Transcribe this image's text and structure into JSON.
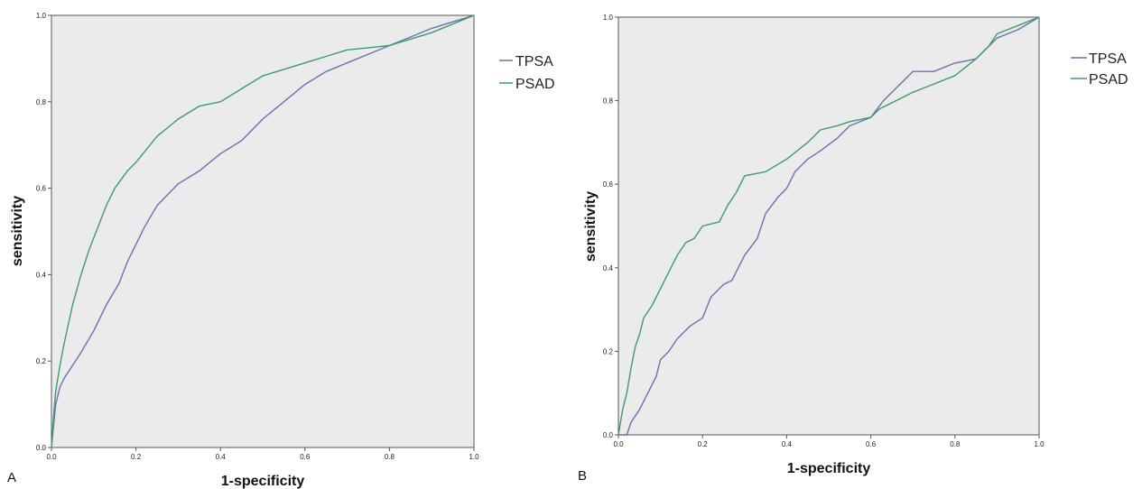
{
  "chart_data": [
    {
      "type": "line",
      "panel_label": "A",
      "xlabel": "1-specificity",
      "ylabel": "sensitivity",
      "xlim": [
        0,
        1
      ],
      "ylim": [
        0,
        1
      ],
      "x_ticks": [
        "0.0",
        "0.2",
        "0.4",
        "0.6",
        "0.8",
        "1.0"
      ],
      "y_ticks": [
        "0.0",
        "0.2",
        "0.4",
        "0.6",
        "0.8",
        "1.0"
      ],
      "grid": false,
      "legend_position": "right",
      "series": [
        {
          "name": "TPSA",
          "color": "#6b6fb3",
          "points": [
            [
              0,
              0
            ],
            [
              0.005,
              0.05
            ],
            [
              0.01,
              0.1
            ],
            [
              0.02,
              0.14
            ],
            [
              0.03,
              0.16
            ],
            [
              0.05,
              0.19
            ],
            [
              0.07,
              0.22
            ],
            [
              0.1,
              0.27
            ],
            [
              0.13,
              0.33
            ],
            [
              0.16,
              0.38
            ],
            [
              0.18,
              0.43
            ],
            [
              0.2,
              0.47
            ],
            [
              0.22,
              0.51
            ],
            [
              0.25,
              0.56
            ],
            [
              0.3,
              0.61
            ],
            [
              0.35,
              0.64
            ],
            [
              0.4,
              0.68
            ],
            [
              0.45,
              0.71
            ],
            [
              0.5,
              0.76
            ],
            [
              0.55,
              0.8
            ],
            [
              0.6,
              0.84
            ],
            [
              0.65,
              0.87
            ],
            [
              0.7,
              0.89
            ],
            [
              0.75,
              0.91
            ],
            [
              0.8,
              0.93
            ],
            [
              0.85,
              0.95
            ],
            [
              0.9,
              0.97
            ],
            [
              0.95,
              0.985
            ],
            [
              1.0,
              1.0
            ]
          ]
        },
        {
          "name": "PSAD",
          "color": "#3f9a6e",
          "points": [
            [
              0,
              0
            ],
            [
              0.005,
              0.07
            ],
            [
              0.01,
              0.13
            ],
            [
              0.02,
              0.19
            ],
            [
              0.03,
              0.24
            ],
            [
              0.05,
              0.33
            ],
            [
              0.07,
              0.4
            ],
            [
              0.09,
              0.46
            ],
            [
              0.11,
              0.51
            ],
            [
              0.13,
              0.56
            ],
            [
              0.15,
              0.6
            ],
            [
              0.18,
              0.64
            ],
            [
              0.2,
              0.66
            ],
            [
              0.25,
              0.72
            ],
            [
              0.3,
              0.76
            ],
            [
              0.35,
              0.79
            ],
            [
              0.4,
              0.8
            ],
            [
              0.45,
              0.83
            ],
            [
              0.5,
              0.86
            ],
            [
              0.55,
              0.875
            ],
            [
              0.6,
              0.89
            ],
            [
              0.65,
              0.905
            ],
            [
              0.7,
              0.92
            ],
            [
              0.75,
              0.925
            ],
            [
              0.8,
              0.93
            ],
            [
              0.85,
              0.945
            ],
            [
              0.9,
              0.96
            ],
            [
              0.95,
              0.98
            ],
            [
              1.0,
              1.0
            ]
          ]
        }
      ]
    },
    {
      "type": "line",
      "panel_label": "B",
      "xlabel": "1-specificity",
      "ylabel": "sensitivity",
      "xlim": [
        0,
        1
      ],
      "ylim": [
        0,
        1
      ],
      "x_ticks": [
        "0.0",
        "0.2",
        "0.4",
        "0.6",
        "0.8",
        "1.0"
      ],
      "y_ticks": [
        "0.0",
        "0.2",
        "0.4",
        "0.6",
        "0.8",
        "1.0"
      ],
      "grid": false,
      "legend_position": "right",
      "series": [
        {
          "name": "TPSA",
          "color": "#6b6fb3",
          "points": [
            [
              0,
              0
            ],
            [
              0.02,
              0.0
            ],
            [
              0.03,
              0.03
            ],
            [
              0.05,
              0.06
            ],
            [
              0.07,
              0.1
            ],
            [
              0.09,
              0.14
            ],
            [
              0.1,
              0.18
            ],
            [
              0.12,
              0.2
            ],
            [
              0.14,
              0.23
            ],
            [
              0.17,
              0.26
            ],
            [
              0.2,
              0.28
            ],
            [
              0.22,
              0.33
            ],
            [
              0.25,
              0.36
            ],
            [
              0.27,
              0.37
            ],
            [
              0.3,
              0.43
            ],
            [
              0.33,
              0.47
            ],
            [
              0.35,
              0.53
            ],
            [
              0.38,
              0.57
            ],
            [
              0.4,
              0.59
            ],
            [
              0.42,
              0.63
            ],
            [
              0.45,
              0.66
            ],
            [
              0.48,
              0.68
            ],
            [
              0.52,
              0.71
            ],
            [
              0.55,
              0.74
            ],
            [
              0.6,
              0.76
            ],
            [
              0.63,
              0.8
            ],
            [
              0.67,
              0.84
            ],
            [
              0.7,
              0.87
            ],
            [
              0.75,
              0.87
            ],
            [
              0.8,
              0.89
            ],
            [
              0.85,
              0.9
            ],
            [
              0.88,
              0.93
            ],
            [
              0.9,
              0.95
            ],
            [
              0.95,
              0.97
            ],
            [
              1.0,
              1.0
            ]
          ]
        },
        {
          "name": "PSAD",
          "color": "#3f9a6e",
          "points": [
            [
              0,
              0
            ],
            [
              0.005,
              0.03
            ],
            [
              0.01,
              0.06
            ],
            [
              0.02,
              0.1
            ],
            [
              0.03,
              0.16
            ],
            [
              0.04,
              0.21
            ],
            [
              0.05,
              0.24
            ],
            [
              0.06,
              0.28
            ],
            [
              0.08,
              0.31
            ],
            [
              0.1,
              0.35
            ],
            [
              0.12,
              0.39
            ],
            [
              0.14,
              0.43
            ],
            [
              0.16,
              0.46
            ],
            [
              0.18,
              0.47
            ],
            [
              0.2,
              0.5
            ],
            [
              0.24,
              0.51
            ],
            [
              0.26,
              0.55
            ],
            [
              0.28,
              0.58
            ],
            [
              0.3,
              0.62
            ],
            [
              0.35,
              0.63
            ],
            [
              0.4,
              0.66
            ],
            [
              0.45,
              0.7
            ],
            [
              0.48,
              0.73
            ],
            [
              0.52,
              0.74
            ],
            [
              0.55,
              0.75
            ],
            [
              0.6,
              0.76
            ],
            [
              0.62,
              0.78
            ],
            [
              0.66,
              0.8
            ],
            [
              0.7,
              0.82
            ],
            [
              0.75,
              0.84
            ],
            [
              0.8,
              0.86
            ],
            [
              0.85,
              0.9
            ],
            [
              0.88,
              0.93
            ],
            [
              0.9,
              0.96
            ],
            [
              0.95,
              0.98
            ],
            [
              1.0,
              1.0
            ]
          ]
        }
      ]
    }
  ]
}
